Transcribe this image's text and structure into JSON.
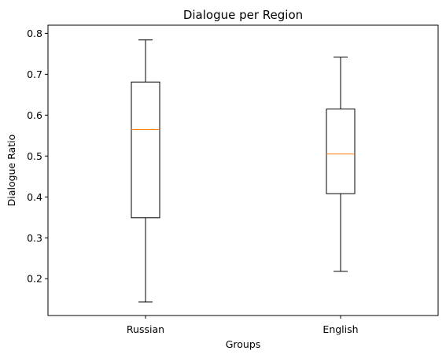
{
  "chart_data": {
    "type": "box",
    "title": "Dialogue per Region",
    "xlabel": "Groups",
    "ylabel": "Dialogue Ratio",
    "ylim": [
      0.11,
      0.82
    ],
    "yticks": [
      0.2,
      0.3,
      0.4,
      0.5,
      0.6,
      0.7,
      0.8
    ],
    "grid": false,
    "categories": [
      "Russian",
      "English"
    ],
    "boxes": [
      {
        "category": "Russian",
        "whisker_low": 0.143,
        "q1": 0.349,
        "median": 0.565,
        "q3": 0.681,
        "whisker_high": 0.784
      },
      {
        "category": "English",
        "whisker_low": 0.218,
        "q1": 0.408,
        "median": 0.505,
        "q3": 0.615,
        "whisker_high": 0.742
      }
    ],
    "colors": {
      "box": "#000000",
      "median": "#ff7f0e"
    }
  }
}
